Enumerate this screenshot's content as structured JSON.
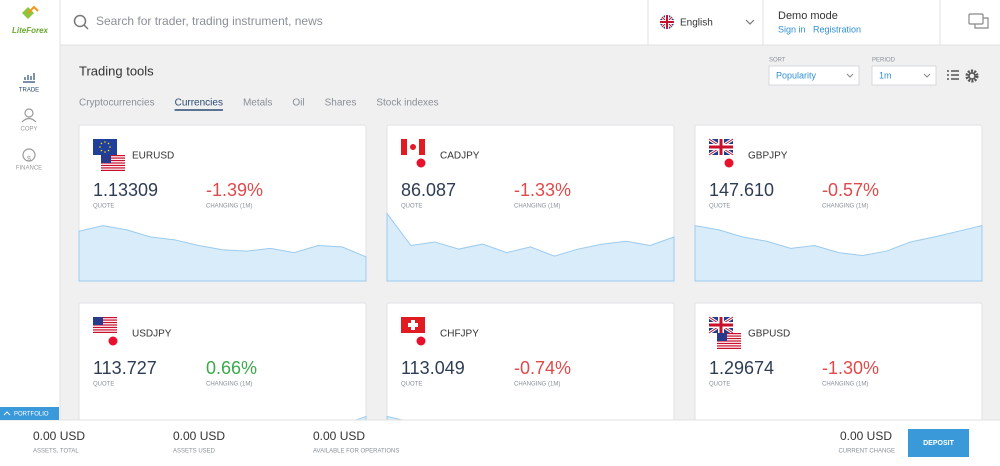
{
  "logo": "LiteForex",
  "header": {
    "search_placeholder": "Search for trader, trading instrument, news",
    "language": "English",
    "mode": "Demo mode",
    "sign_in": "Sign in",
    "registration": "Registration"
  },
  "nav": [
    "TRADE",
    "COPY",
    "FINANCE"
  ],
  "page": {
    "title": "Trading tools",
    "tabs": [
      "Cryptocurrencies",
      "Currencies",
      "Metals",
      "Oil",
      "Shares",
      "Stock indexes"
    ],
    "active_tab": 1,
    "sort_label": "SORT",
    "sort_value": "Popularity",
    "period_label": "PERIOD",
    "period_value": "1m"
  },
  "cards": [
    {
      "pair": "EURUSD",
      "quote": "1.13309",
      "quote_label": "QUOTE",
      "change": "-1.39%",
      "change_label": "CHANGING (1M)"
    },
    {
      "pair": "CADJPY",
      "quote": "86.087",
      "quote_label": "QUOTE",
      "change": "-1.33%",
      "change_label": "CHANGING (1M)"
    },
    {
      "pair": "GBPJPY",
      "quote": "147.610",
      "quote_label": "QUOTE",
      "change": "-0.57%",
      "change_label": "CHANGING (1M)"
    },
    {
      "pair": "USDJPY",
      "quote": "113.727",
      "quote_label": "QUOTE",
      "change": "0.66%",
      "change_label": "CHANGING (1M)"
    },
    {
      "pair": "CHFJPY",
      "quote": "113.049",
      "quote_label": "QUOTE",
      "change": "-0.74%",
      "change_label": "CHANGING (1M)"
    },
    {
      "pair": "GBPUSD",
      "quote": "1.29674",
      "quote_label": "QUOTE",
      "change": "-1.30%",
      "change_label": "CHANGING (1M)"
    }
  ],
  "portfolio": "PORTFOLIO",
  "footer": {
    "items": [
      {
        "value": "0.00 USD",
        "label": "ASSETS, TOTAL"
      },
      {
        "value": "0.00 USD",
        "label": "ASSETS USED"
      },
      {
        "value": "0.00 USD",
        "label": "AVAILABLE FOR OPERATIONS"
      }
    ],
    "current": {
      "value": "0.00 USD",
      "label": "CURRENT CHANGE"
    },
    "button": "DEPOSIT"
  }
}
